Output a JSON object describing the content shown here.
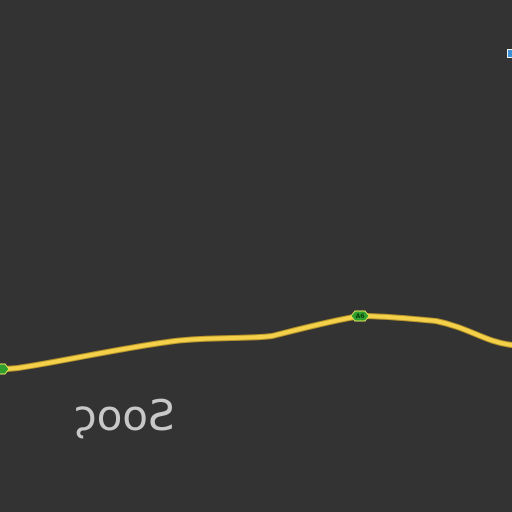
{
  "map": {
    "background": "#333333",
    "road_color": "#f5d04a",
    "shield_fill": "#2e9e2e",
    "shield_stroke": "#e6e65a",
    "route_shield_label": "A6",
    "place_label": "Sooς",
    "edge_marker_color": "#3a8fd6"
  }
}
